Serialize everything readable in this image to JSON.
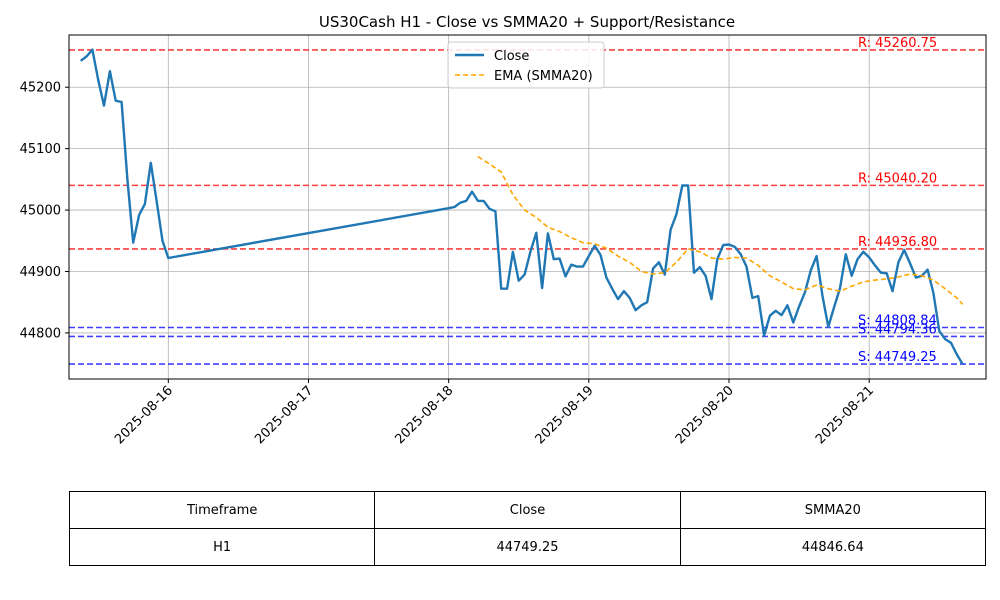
{
  "chart_data": {
    "type": "line",
    "title": "US30Cash H1 - Close vs SMMA20 + Support/Resistance",
    "xlabel": "",
    "ylabel": "",
    "xlim": [
      "2025-08-15 07:00",
      "2025-08-21 20:00"
    ],
    "ylim": [
      44725,
      45285
    ],
    "x_ticks": [
      "2025-08-16",
      "2025-08-17",
      "2025-08-18",
      "2025-08-19",
      "2025-08-20",
      "2025-08-21"
    ],
    "y_ticks": [
      44800,
      44900,
      45000,
      45100,
      45200
    ],
    "grid": true,
    "legend_position": "top-center",
    "series": [
      {
        "name": "Close",
        "color": "#1f77b4",
        "style": "solid",
        "points": [
          [
            "2025-08-15 09:00",
            45243
          ],
          [
            "2025-08-15 10:00",
            45250
          ],
          [
            "2025-08-15 11:00",
            45261
          ],
          [
            "2025-08-15 12:00",
            45212
          ],
          [
            "2025-08-15 13:00",
            45170
          ],
          [
            "2025-08-15 14:00",
            45226
          ],
          [
            "2025-08-15 15:00",
            45178
          ],
          [
            "2025-08-15 16:00",
            45176
          ],
          [
            "2025-08-15 17:00",
            45050
          ],
          [
            "2025-08-15 18:00",
            44947
          ],
          [
            "2025-08-15 19:00",
            44992
          ],
          [
            "2025-08-15 20:00",
            45010
          ],
          [
            "2025-08-15 21:00",
            45077
          ],
          [
            "2025-08-15 22:00",
            45015
          ],
          [
            "2025-08-15 23:00",
            44950
          ],
          [
            "2025-08-16 00:00",
            44922
          ],
          [
            "2025-08-18 00:00",
            45003
          ],
          [
            "2025-08-18 01:00",
            45005
          ],
          [
            "2025-08-18 02:00",
            45012
          ],
          [
            "2025-08-18 03:00",
            45015
          ],
          [
            "2025-08-18 04:00",
            45030
          ],
          [
            "2025-08-18 05:00",
            45015
          ],
          [
            "2025-08-18 06:00",
            45015
          ],
          [
            "2025-08-18 07:00",
            45002
          ],
          [
            "2025-08-18 08:00",
            44998
          ],
          [
            "2025-08-18 09:00",
            44872
          ],
          [
            "2025-08-18 10:00",
            44872
          ],
          [
            "2025-08-18 11:00",
            44932
          ],
          [
            "2025-08-18 12:00",
            44885
          ],
          [
            "2025-08-18 13:00",
            44895
          ],
          [
            "2025-08-18 14:00",
            44932
          ],
          [
            "2025-08-18 15:00",
            44963
          ],
          [
            "2025-08-18 16:00",
            44873
          ],
          [
            "2025-08-18 17:00",
            44962
          ],
          [
            "2025-08-18 18:00",
            44920
          ],
          [
            "2025-08-18 19:00",
            44921
          ],
          [
            "2025-08-18 20:00",
            44892
          ],
          [
            "2025-08-18 21:00",
            44911
          ],
          [
            "2025-08-18 22:00",
            44908
          ],
          [
            "2025-08-18 23:00",
            44908
          ],
          [
            "2025-08-19 00:00",
            44925
          ],
          [
            "2025-08-19 01:00",
            44942
          ],
          [
            "2025-08-19 02:00",
            44927
          ],
          [
            "2025-08-19 03:00",
            44890
          ],
          [
            "2025-08-19 04:00",
            44872
          ],
          [
            "2025-08-19 05:00",
            44855
          ],
          [
            "2025-08-19 06:00",
            44868
          ],
          [
            "2025-08-19 07:00",
            44857
          ],
          [
            "2025-08-19 08:00",
            44837
          ],
          [
            "2025-08-19 09:00",
            44845
          ],
          [
            "2025-08-19 10:00",
            44850
          ],
          [
            "2025-08-19 11:00",
            44905
          ],
          [
            "2025-08-19 12:00",
            44915
          ],
          [
            "2025-08-19 13:00",
            44895
          ],
          [
            "2025-08-19 14:00",
            44968
          ],
          [
            "2025-08-19 15:00",
            44993
          ],
          [
            "2025-08-19 16:00",
            45040
          ],
          [
            "2025-08-19 17:00",
            45040
          ],
          [
            "2025-08-19 18:00",
            44898
          ],
          [
            "2025-08-19 19:00",
            44907
          ],
          [
            "2025-08-19 20:00",
            44893
          ],
          [
            "2025-08-19 21:00",
            44855
          ],
          [
            "2025-08-19 22:00",
            44920
          ],
          [
            "2025-08-19 23:00",
            44943
          ],
          [
            "2025-08-20 00:00",
            44944
          ],
          [
            "2025-08-20 01:00",
            44940
          ],
          [
            "2025-08-20 02:00",
            44928
          ],
          [
            "2025-08-20 03:00",
            44908
          ],
          [
            "2025-08-20 04:00",
            44857
          ],
          [
            "2025-08-20 05:00",
            44860
          ],
          [
            "2025-08-20 06:00",
            44796
          ],
          [
            "2025-08-20 07:00",
            44828
          ],
          [
            "2025-08-20 08:00",
            44836
          ],
          [
            "2025-08-20 09:00",
            44829
          ],
          [
            "2025-08-20 10:00",
            44845
          ],
          [
            "2025-08-20 11:00",
            44817
          ],
          [
            "2025-08-20 12:00",
            44843
          ],
          [
            "2025-08-20 13:00",
            44866
          ],
          [
            "2025-08-20 14:00",
            44902
          ],
          [
            "2025-08-20 15:00",
            44925
          ],
          [
            "2025-08-20 16:00",
            44860
          ],
          [
            "2025-08-20 17:00",
            44810
          ],
          [
            "2025-08-20 18:00",
            44842
          ],
          [
            "2025-08-20 19:00",
            44873
          ],
          [
            "2025-08-20 20:00",
            44928
          ],
          [
            "2025-08-20 21:00",
            44893
          ],
          [
            "2025-08-20 22:00",
            44920
          ],
          [
            "2025-08-20 23:00",
            44932
          ],
          [
            "2025-08-21 00:00",
            44923
          ],
          [
            "2025-08-21 01:00",
            44910
          ],
          [
            "2025-08-21 02:00",
            44898
          ],
          [
            "2025-08-21 03:00",
            44897
          ],
          [
            "2025-08-21 04:00",
            44868
          ],
          [
            "2025-08-21 05:00",
            44915
          ],
          [
            "2025-08-21 06:00",
            44935
          ],
          [
            "2025-08-21 07:00",
            44913
          ],
          [
            "2025-08-21 08:00",
            44890
          ],
          [
            "2025-08-21 09:00",
            44893
          ],
          [
            "2025-08-21 10:00",
            44903
          ],
          [
            "2025-08-21 11:00",
            44865
          ],
          [
            "2025-08-21 12:00",
            44803
          ],
          [
            "2025-08-21 13:00",
            44790
          ],
          [
            "2025-08-21 14:00",
            44784
          ],
          [
            "2025-08-21 15:00",
            44765
          ],
          [
            "2025-08-21 16:00",
            44749.25
          ]
        ]
      },
      {
        "name": "EMA (SMMA20)",
        "color": "#ffa500",
        "style": "dashed",
        "points": [
          [
            "2025-08-18 05:00",
            45087
          ],
          [
            "2025-08-18 07:00",
            45075
          ],
          [
            "2025-08-18 09:00",
            45062
          ],
          [
            "2025-08-18 11:00",
            45025
          ],
          [
            "2025-08-18 13:00",
            45000
          ],
          [
            "2025-08-18 15:00",
            44988
          ],
          [
            "2025-08-18 17:00",
            44972
          ],
          [
            "2025-08-18 19:00",
            44965
          ],
          [
            "2025-08-18 21:00",
            44955
          ],
          [
            "2025-08-18 23:00",
            44947
          ],
          [
            "2025-08-19 01:00",
            44945
          ],
          [
            "2025-08-19 03:00",
            44938
          ],
          [
            "2025-08-19 05:00",
            44925
          ],
          [
            "2025-08-19 07:00",
            44915
          ],
          [
            "2025-08-19 09:00",
            44900
          ],
          [
            "2025-08-19 11:00",
            44896
          ],
          [
            "2025-08-19 13:00",
            44898
          ],
          [
            "2025-08-19 15:00",
            44915
          ],
          [
            "2025-08-19 17:00",
            44937
          ],
          [
            "2025-08-19 19:00",
            44932
          ],
          [
            "2025-08-19 21:00",
            44922
          ],
          [
            "2025-08-19 23:00",
            44920
          ],
          [
            "2025-08-20 01:00",
            44923
          ],
          [
            "2025-08-20 03:00",
            44922
          ],
          [
            "2025-08-20 05:00",
            44910
          ],
          [
            "2025-08-20 07:00",
            44893
          ],
          [
            "2025-08-20 09:00",
            44883
          ],
          [
            "2025-08-20 11:00",
            44872
          ],
          [
            "2025-08-20 13:00",
            44870
          ],
          [
            "2025-08-20 15:00",
            44878
          ],
          [
            "2025-08-20 17:00",
            44872
          ],
          [
            "2025-08-20 19:00",
            44868
          ],
          [
            "2025-08-20 21:00",
            44876
          ],
          [
            "2025-08-20 23:00",
            44883
          ],
          [
            "2025-08-21 01:00",
            44886
          ],
          [
            "2025-08-21 03:00",
            44888
          ],
          [
            "2025-08-21 05:00",
            44891
          ],
          [
            "2025-08-21 07:00",
            44896
          ],
          [
            "2025-08-21 09:00",
            44893
          ],
          [
            "2025-08-21 11:00",
            44886
          ],
          [
            "2025-08-21 13:00",
            44872
          ],
          [
            "2025-08-21 15:00",
            44857
          ],
          [
            "2025-08-21 16:00",
            44846.64
          ]
        ]
      }
    ],
    "levels": [
      {
        "label": "R: 45260.75",
        "value": 45260.75,
        "kind": "resistance",
        "color": "#ff0000"
      },
      {
        "label": "R: 45040.20",
        "value": 45040.2,
        "kind": "resistance",
        "color": "#ff0000"
      },
      {
        "label": "R: 44936.80",
        "value": 44936.8,
        "kind": "resistance",
        "color": "#ff0000"
      },
      {
        "label": "S: 44808.84",
        "value": 44808.84,
        "kind": "support",
        "color": "#0000ff"
      },
      {
        "label": "S: 44794.36",
        "value": 44794.36,
        "kind": "support",
        "color": "#0000ff"
      },
      {
        "label": "S: 44749.25",
        "value": 44749.25,
        "kind": "support",
        "color": "#0000ff"
      }
    ]
  },
  "table": {
    "headers": [
      "Timeframe",
      "Close",
      "SMMA20"
    ],
    "rows": [
      [
        "H1",
        "44749.25",
        "44846.64"
      ]
    ]
  }
}
